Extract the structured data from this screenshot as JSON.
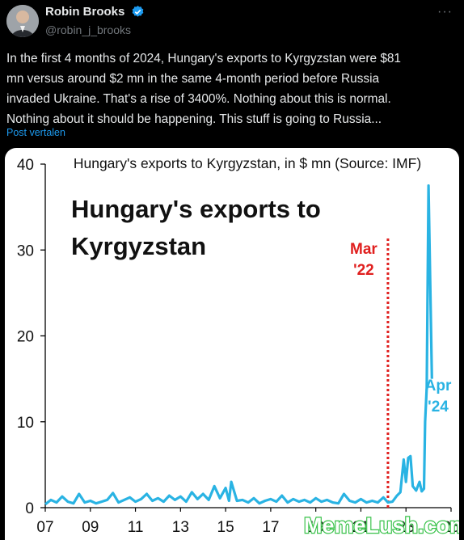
{
  "author": {
    "name": "Robin Brooks",
    "handle": "@robin_j_brooks"
  },
  "tweet": {
    "text": "In the first 4 months of 2024, Hungary's exports to Kyrgyzstan were $81\nmn versus around $2 mn in the same 4-month period before Russia\ninvaded Ukraine. That's a rise of 3400%. Nothing about this is normal.\nNothing about it should be happening. This stuff is going to Russia...",
    "translate_label": "Post vertalen"
  },
  "icons": {
    "verified": "verified-badge-icon",
    "more": "more-options-icon"
  },
  "colors": {
    "accent": "#1d9bf0",
    "series": "#29b3e3",
    "marker": "#e0201f"
  },
  "watermark": "MemeLush.com",
  "chart_data": {
    "type": "line",
    "title": "Hungary's exports to Kyrgyzstan, in $ mn (Source: IMF)",
    "big_title": [
      "Hungary's exports to",
      "Kyrgyzstan"
    ],
    "xlabel": "",
    "ylabel": "",
    "ylim": [
      0,
      40
    ],
    "y_ticks": [
      0,
      10,
      20,
      30,
      40
    ],
    "x_ticks": [
      "07",
      "09",
      "11",
      "13",
      "15",
      "17",
      "19",
      "21",
      "23",
      "25"
    ],
    "x_start": 2007,
    "x_end": 2025,
    "marker": {
      "x": 2022.2,
      "label": [
        "Mar",
        "'22"
      ]
    },
    "end_label": [
      "Apr",
      "'24"
    ],
    "series": [
      {
        "values": [
          [
            2007.0,
            0.4
          ],
          [
            2007.25,
            0.9
          ],
          [
            2007.5,
            0.6
          ],
          [
            2007.75,
            1.3
          ],
          [
            2008.0,
            0.7
          ],
          [
            2008.25,
            0.5
          ],
          [
            2008.5,
            1.6
          ],
          [
            2008.75,
            0.6
          ],
          [
            2009.0,
            0.8
          ],
          [
            2009.25,
            0.5
          ],
          [
            2009.5,
            0.7
          ],
          [
            2009.75,
            0.9
          ],
          [
            2010.0,
            1.7
          ],
          [
            2010.25,
            0.6
          ],
          [
            2010.5,
            0.9
          ],
          [
            2010.75,
            1.2
          ],
          [
            2011.0,
            0.7
          ],
          [
            2011.25,
            1.0
          ],
          [
            2011.5,
            1.6
          ],
          [
            2011.75,
            0.8
          ],
          [
            2012.0,
            1.1
          ],
          [
            2012.25,
            0.7
          ],
          [
            2012.5,
            1.4
          ],
          [
            2012.75,
            0.9
          ],
          [
            2013.0,
            1.3
          ],
          [
            2013.25,
            0.7
          ],
          [
            2013.5,
            1.8
          ],
          [
            2013.75,
            1.0
          ],
          [
            2014.0,
            1.6
          ],
          [
            2014.25,
            0.9
          ],
          [
            2014.5,
            2.5
          ],
          [
            2014.75,
            1.1
          ],
          [
            2015.0,
            2.3
          ],
          [
            2015.15,
            0.8
          ],
          [
            2015.25,
            3.0
          ],
          [
            2015.5,
            0.8
          ],
          [
            2015.75,
            0.9
          ],
          [
            2016.0,
            0.6
          ],
          [
            2016.25,
            1.1
          ],
          [
            2016.5,
            0.5
          ],
          [
            2016.75,
            0.8
          ],
          [
            2017.0,
            1.0
          ],
          [
            2017.25,
            0.7
          ],
          [
            2017.5,
            1.4
          ],
          [
            2017.75,
            0.6
          ],
          [
            2018.0,
            1.0
          ],
          [
            2018.25,
            0.7
          ],
          [
            2018.5,
            0.9
          ],
          [
            2018.75,
            0.6
          ],
          [
            2019.0,
            1.1
          ],
          [
            2019.25,
            0.7
          ],
          [
            2019.5,
            0.9
          ],
          [
            2019.75,
            0.6
          ],
          [
            2020.0,
            0.5
          ],
          [
            2020.25,
            1.6
          ],
          [
            2020.5,
            0.8
          ],
          [
            2020.75,
            0.6
          ],
          [
            2021.0,
            1.0
          ],
          [
            2021.25,
            0.6
          ],
          [
            2021.5,
            0.8
          ],
          [
            2021.75,
            0.6
          ],
          [
            2022.0,
            1.2
          ],
          [
            2022.2,
            0.6
          ],
          [
            2022.4,
            0.7
          ],
          [
            2022.6,
            1.4
          ],
          [
            2022.75,
            1.8
          ],
          [
            2022.9,
            5.6
          ],
          [
            2023.0,
            3.0
          ],
          [
            2023.1,
            5.8
          ],
          [
            2023.2,
            6.0
          ],
          [
            2023.3,
            2.5
          ],
          [
            2023.45,
            2.0
          ],
          [
            2023.6,
            3.0
          ],
          [
            2023.7,
            1.9
          ],
          [
            2023.8,
            2.2
          ],
          [
            2023.85,
            10.0
          ],
          [
            2023.92,
            14.0
          ],
          [
            2024.0,
            37.5
          ],
          [
            2024.15,
            15.0
          ]
        ]
      }
    ]
  }
}
